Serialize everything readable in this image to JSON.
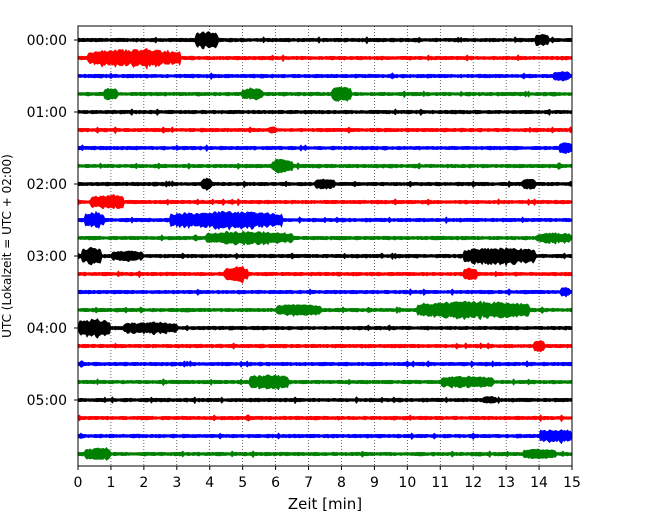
{
  "chart_data": {
    "type": "line",
    "title": "",
    "xlabel": "Zeit  [min]",
    "ylabel": "UTC (Lokalzeit = UTC + 02:00)",
    "xlim": [
      0,
      15
    ],
    "x_ticks": [
      "0",
      "1",
      "2",
      "3",
      "4",
      "5",
      "6",
      "7",
      "8",
      "9",
      "10",
      "11",
      "12",
      "13",
      "14",
      "15"
    ],
    "y_tick_labels": [
      "00:00",
      "01:00",
      "02:00",
      "03:00",
      "04:00",
      "05:00"
    ],
    "grid": "vertical dotted",
    "legend": "none",
    "trace_colors": [
      "#000000",
      "#ff0000",
      "#0000ff",
      "#008000"
    ],
    "trace_minutes": 15,
    "traces": [
      {
        "utc": "00:00",
        "bursts": [
          {
            "t": 3.9,
            "amp": 1.0,
            "w": 0.7
          },
          {
            "t": 14.1,
            "amp": 0.6,
            "w": 0.4
          }
        ]
      },
      {
        "utc": "00:15",
        "bursts": [
          {
            "t": 1.7,
            "amp": 1.0,
            "w": 2.8
          }
        ]
      },
      {
        "utc": "00:30",
        "bursts": [
          {
            "t": 14.7,
            "amp": 0.5,
            "w": 0.5
          }
        ]
      },
      {
        "utc": "00:45",
        "bursts": [
          {
            "t": 1.0,
            "amp": 0.7,
            "w": 0.4
          },
          {
            "t": 5.3,
            "amp": 0.6,
            "w": 0.6
          },
          {
            "t": 8.0,
            "amp": 0.8,
            "w": 0.6
          }
        ]
      },
      {
        "utc": "01:00",
        "bursts": []
      },
      {
        "utc": "01:15",
        "bursts": [
          {
            "t": 5.9,
            "amp": 0.3,
            "w": 0.2
          }
        ]
      },
      {
        "utc": "01:30",
        "bursts": [
          {
            "t": 14.8,
            "amp": 0.5,
            "w": 0.4
          }
        ]
      },
      {
        "utc": "01:45",
        "bursts": [
          {
            "t": 6.2,
            "amp": 0.8,
            "w": 0.6
          }
        ]
      },
      {
        "utc": "02:00",
        "bursts": [
          {
            "t": 3.9,
            "amp": 0.6,
            "w": 0.3
          },
          {
            "t": 7.5,
            "amp": 0.5,
            "w": 0.6
          },
          {
            "t": 13.7,
            "amp": 0.5,
            "w": 0.4
          }
        ]
      },
      {
        "utc": "02:15",
        "bursts": [
          {
            "t": 0.9,
            "amp": 0.8,
            "w": 1.0
          }
        ]
      },
      {
        "utc": "02:30",
        "bursts": [
          {
            "t": 0.5,
            "amp": 0.9,
            "w": 0.6
          },
          {
            "t": 4.5,
            "amp": 1.0,
            "w": 3.4
          }
        ]
      },
      {
        "utc": "02:45",
        "bursts": [
          {
            "t": 5.2,
            "amp": 0.7,
            "w": 2.6
          },
          {
            "t": 14.5,
            "amp": 0.5,
            "w": 1.0
          }
        ]
      },
      {
        "utc": "03:00",
        "bursts": [
          {
            "t": 0.4,
            "amp": 1.0,
            "w": 0.6
          },
          {
            "t": 1.5,
            "amp": 0.5,
            "w": 1.0
          },
          {
            "t": 12.8,
            "amp": 1.0,
            "w": 2.2
          }
        ]
      },
      {
        "utc": "03:15",
        "bursts": [
          {
            "t": 4.8,
            "amp": 0.8,
            "w": 0.7
          },
          {
            "t": 11.9,
            "amp": 0.7,
            "w": 0.4
          }
        ]
      },
      {
        "utc": "03:30",
        "bursts": [
          {
            "t": 14.8,
            "amp": 0.5,
            "w": 0.3
          }
        ]
      },
      {
        "utc": "03:45",
        "bursts": [
          {
            "t": 6.7,
            "amp": 0.6,
            "w": 1.4
          },
          {
            "t": 12.0,
            "amp": 1.0,
            "w": 3.4
          }
        ]
      },
      {
        "utc": "04:00",
        "bursts": [
          {
            "t": 0.5,
            "amp": 1.0,
            "w": 1.0
          },
          {
            "t": 2.2,
            "amp": 0.6,
            "w": 1.6
          }
        ]
      },
      {
        "utc": "04:15",
        "bursts": [
          {
            "t": 14.0,
            "amp": 0.6,
            "w": 0.3
          }
        ]
      },
      {
        "utc": "04:30",
        "bursts": []
      },
      {
        "utc": "04:45",
        "bursts": [
          {
            "t": 5.8,
            "amp": 0.8,
            "w": 1.2
          },
          {
            "t": 11.8,
            "amp": 0.6,
            "w": 1.6
          }
        ]
      },
      {
        "utc": "05:00",
        "bursts": [
          {
            "t": 12.5,
            "amp": 0.3,
            "w": 0.4
          }
        ]
      },
      {
        "utc": "05:15",
        "bursts": []
      },
      {
        "utc": "05:30",
        "bursts": [
          {
            "t": 14.5,
            "amp": 0.7,
            "w": 1.0
          }
        ]
      },
      {
        "utc": "05:45",
        "bursts": [
          {
            "t": 0.6,
            "amp": 0.6,
            "w": 0.8
          },
          {
            "t": 14.0,
            "amp": 0.5,
            "w": 1.0
          }
        ]
      }
    ]
  }
}
